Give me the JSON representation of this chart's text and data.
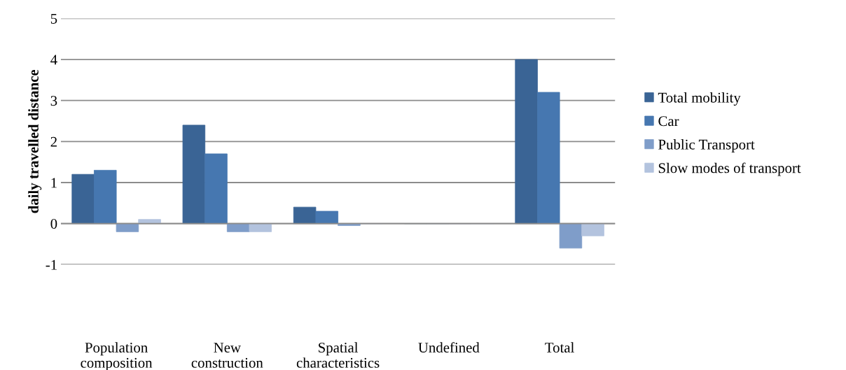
{
  "chart_data": {
    "type": "bar",
    "ylabel": "daily travelled distance",
    "categories": [
      "Population\ncomposition",
      "New\nconstruction",
      "Spatial\ncharacteristics",
      "Undefined",
      "Total"
    ],
    "series": [
      {
        "name": "Total mobility",
        "color": "#3a6495",
        "values": [
          1.2,
          2.4,
          0.4,
          0,
          4.0
        ]
      },
      {
        "name": "Car",
        "color": "#4677b0",
        "values": [
          1.3,
          1.7,
          0.3,
          0,
          3.2
        ]
      },
      {
        "name": "Public Transport",
        "color": "#7f9dc9",
        "values": [
          -0.2,
          -0.2,
          -0.05,
          0,
          -0.6
        ]
      },
      {
        "name": "Slow modes of transport",
        "color": "#b3c3de",
        "values": [
          0.1,
          -0.2,
          0,
          0,
          -0.3
        ]
      }
    ],
    "ylim": [
      -1,
      5
    ],
    "yticks": [
      -1,
      0,
      1,
      2,
      3,
      4,
      5
    ],
    "grid": "y",
    "legend": "right"
  }
}
